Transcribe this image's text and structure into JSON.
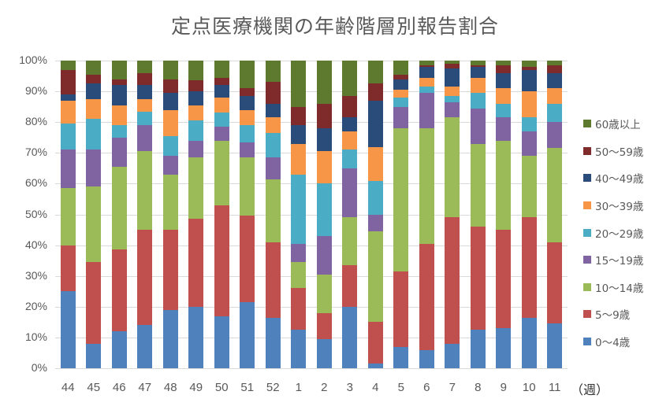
{
  "title": "定点医療機関の年齢階層別報告割合",
  "x_unit_label": "（週）",
  "y_ticks": [
    "0%",
    "10%",
    "20%",
    "30%",
    "40%",
    "50%",
    "60%",
    "70%",
    "80%",
    "90%",
    "100%"
  ],
  "legend": [
    {
      "label": "60歳以上",
      "color": "#5e7a2e"
    },
    {
      "label": "50～59歳",
      "color": "#7f2b2b"
    },
    {
      "label": "40～49歳",
      "color": "#294c7a"
    },
    {
      "label": "30～39歳",
      "color": "#f79646"
    },
    {
      "label": "20～29歳",
      "color": "#4bacc6"
    },
    {
      "label": "15～19歳",
      "color": "#8064a2"
    },
    {
      "label": "10～14歳",
      "color": "#9bbb59"
    },
    {
      "label": "5～9歳",
      "color": "#c0504d"
    },
    {
      "label": "0～4歳",
      "color": "#4f81bd"
    }
  ],
  "chart_data": {
    "type": "bar",
    "stacked": true,
    "normalized": true,
    "title": "定点医療機関の年齢階層別報告割合",
    "xlabel": "（週）",
    "ylabel": "",
    "ylim": [
      0,
      100
    ],
    "y_tick_format": "percent",
    "grid": true,
    "legend_position": "right",
    "categories": [
      "44",
      "45",
      "46",
      "47",
      "48",
      "49",
      "50",
      "51",
      "52",
      "1",
      "2",
      "3",
      "4",
      "5",
      "6",
      "7",
      "8",
      "9",
      "10",
      "11"
    ],
    "series": [
      {
        "name": "0～4歳",
        "color": "#4f81bd",
        "values": [
          25,
          8,
          12,
          14,
          19,
          20,
          17,
          21.5,
          16.5,
          12.5,
          9.5,
          20,
          1.5,
          7,
          6,
          8,
          12.5,
          13,
          16.5,
          14.5
        ]
      },
      {
        "name": "5～9歳",
        "color": "#c0504d",
        "values": [
          15,
          26.5,
          26.5,
          31,
          26,
          28.5,
          36,
          28,
          24.5,
          13.5,
          8.5,
          13.5,
          13.5,
          24.5,
          34.5,
          41,
          33.5,
          32,
          32.5,
          26.5
        ]
      },
      {
        "name": "10～14歳",
        "color": "#9bbb59",
        "values": [
          18.5,
          24.5,
          27,
          25.5,
          18,
          20,
          21,
          19,
          20.5,
          8.5,
          12.5,
          15.5,
          29.5,
          46.5,
          37.5,
          32.5,
          27,
          29,
          20,
          30.5
        ]
      },
      {
        "name": "15～19歳",
        "color": "#8064a2",
        "values": [
          12.5,
          12,
          9.5,
          8.5,
          6,
          5.5,
          4.5,
          5,
          7,
          6,
          12.5,
          16,
          5.5,
          7,
          11.5,
          5,
          11.5,
          7.5,
          8,
          8.5
        ]
      },
      {
        "name": "20～29歳",
        "color": "#4bacc6",
        "values": [
          8.5,
          10,
          4,
          4.5,
          6.5,
          6.5,
          4.5,
          5.5,
          8,
          22.5,
          17,
          6,
          11,
          3,
          2,
          2,
          5,
          4.5,
          4.5,
          6
        ]
      },
      {
        "name": "30～39歳",
        "color": "#f79646",
        "values": [
          7.5,
          6.5,
          6.5,
          4,
          8.5,
          5,
          5,
          5,
          5,
          10,
          10.5,
          6,
          11,
          2.5,
          3,
          3,
          5,
          5,
          8.5,
          5
        ]
      },
      {
        "name": "40～49歳",
        "color": "#294c7a",
        "values": [
          2,
          5,
          6.5,
          4.5,
          5.5,
          4.5,
          4,
          4.5,
          4.5,
          6,
          7.5,
          4.5,
          15,
          3.5,
          3.5,
          6,
          3.5,
          5,
          7,
          5
        ]
      },
      {
        "name": "50～59歳",
        "color": "#7f2b2b",
        "values": [
          8,
          3,
          2,
          4,
          4.5,
          3.5,
          2.5,
          2.5,
          7,
          6,
          8,
          7,
          5.5,
          1.5,
          0.5,
          1.5,
          0.5,
          2.5,
          1,
          2.5
        ]
      },
      {
        "name": "60歳以上",
        "color": "#5e7a2e",
        "values": [
          3,
          4.5,
          6,
          4,
          6,
          6.5,
          5.5,
          9,
          7,
          15,
          14,
          11.5,
          7.5,
          4.5,
          1.5,
          1,
          1.5,
          1.5,
          2,
          1.5
        ]
      }
    ]
  }
}
